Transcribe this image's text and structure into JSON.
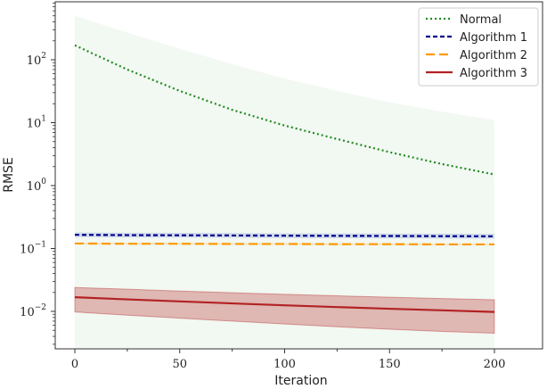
{
  "chart_data": {
    "type": "line",
    "title": "",
    "xlabel": "Iteration",
    "ylabel": "RMSE",
    "yscale": "log",
    "xlim": [
      -8,
      210
    ],
    "ylim": [
      0.003,
      900
    ],
    "grid": false,
    "legend_position": "upper right",
    "x_ticks": [
      0,
      50,
      100,
      150,
      200
    ],
    "y_ticks": [
      {
        "value": 100,
        "label_base": "10",
        "label_exp": "2"
      },
      {
        "value": 10,
        "label_base": "10",
        "label_exp": "1"
      },
      {
        "value": 1,
        "label_base": "10",
        "label_exp": "0"
      },
      {
        "value": 0.1,
        "label_base": "10",
        "label_exp": "−1"
      },
      {
        "value": 0.01,
        "label_base": "10",
        "label_exp": "−2"
      }
    ],
    "x": [
      0,
      25,
      50,
      75,
      100,
      125,
      150,
      175,
      200
    ],
    "series": [
      {
        "name": "Normal",
        "color": "#228B22",
        "style": "dotted",
        "values": [
          170,
          70,
          32,
          16,
          9,
          5.5,
          3.4,
          2.2,
          1.5
        ],
        "band_upper": [
          500,
          270,
          150,
          85,
          50,
          32,
          21,
          15,
          11
        ],
        "band_lower": [
          0.001,
          0.001,
          0.001,
          0.001,
          0.001,
          0.001,
          0.001,
          0.001,
          0.001
        ],
        "band_color": "#228B22",
        "band_opacity": 0.06
      },
      {
        "name": "Algorithm 1",
        "color": "#00008B",
        "style": "dashed",
        "values": [
          0.165,
          0.163,
          0.162,
          0.161,
          0.16,
          0.159,
          0.158,
          0.157,
          0.156
        ],
        "band_upper": [
          0.18,
          0.178,
          0.177,
          0.176,
          0.175,
          0.174,
          0.173,
          0.172,
          0.171
        ],
        "band_lower": [
          0.152,
          0.15,
          0.149,
          0.148,
          0.147,
          0.146,
          0.145,
          0.144,
          0.143
        ],
        "band_color": "#6a7fd0",
        "band_opacity": 0.25
      },
      {
        "name": "Algorithm 2",
        "color": "#FF9900",
        "style": "longdash",
        "values": [
          0.12,
          0.119,
          0.119,
          0.118,
          0.118,
          0.117,
          0.117,
          0.116,
          0.116
        ],
        "band_upper": [
          0.124,
          0.123,
          0.123,
          0.122,
          0.122,
          0.121,
          0.121,
          0.12,
          0.12
        ],
        "band_lower": [
          0.116,
          0.115,
          0.115,
          0.114,
          0.114,
          0.113,
          0.113,
          0.112,
          0.112
        ],
        "band_color": "#FFB74D",
        "band_opacity": 0.3
      },
      {
        "name": "Algorithm 3",
        "color": "#B22222",
        "style": "solid",
        "values": [
          0.0168,
          0.0155,
          0.0144,
          0.0134,
          0.0125,
          0.0117,
          0.011,
          0.0104,
          0.0098
        ],
        "band_upper": [
          0.024,
          0.0225,
          0.021,
          0.0198,
          0.0187,
          0.0177,
          0.0168,
          0.016,
          0.0153
        ],
        "band_lower": [
          0.0098,
          0.0087,
          0.0078,
          0.007,
          0.0063,
          0.0057,
          0.0052,
          0.0048,
          0.0045
        ],
        "band_color": "#B22222",
        "band_opacity": 0.3
      }
    ]
  }
}
